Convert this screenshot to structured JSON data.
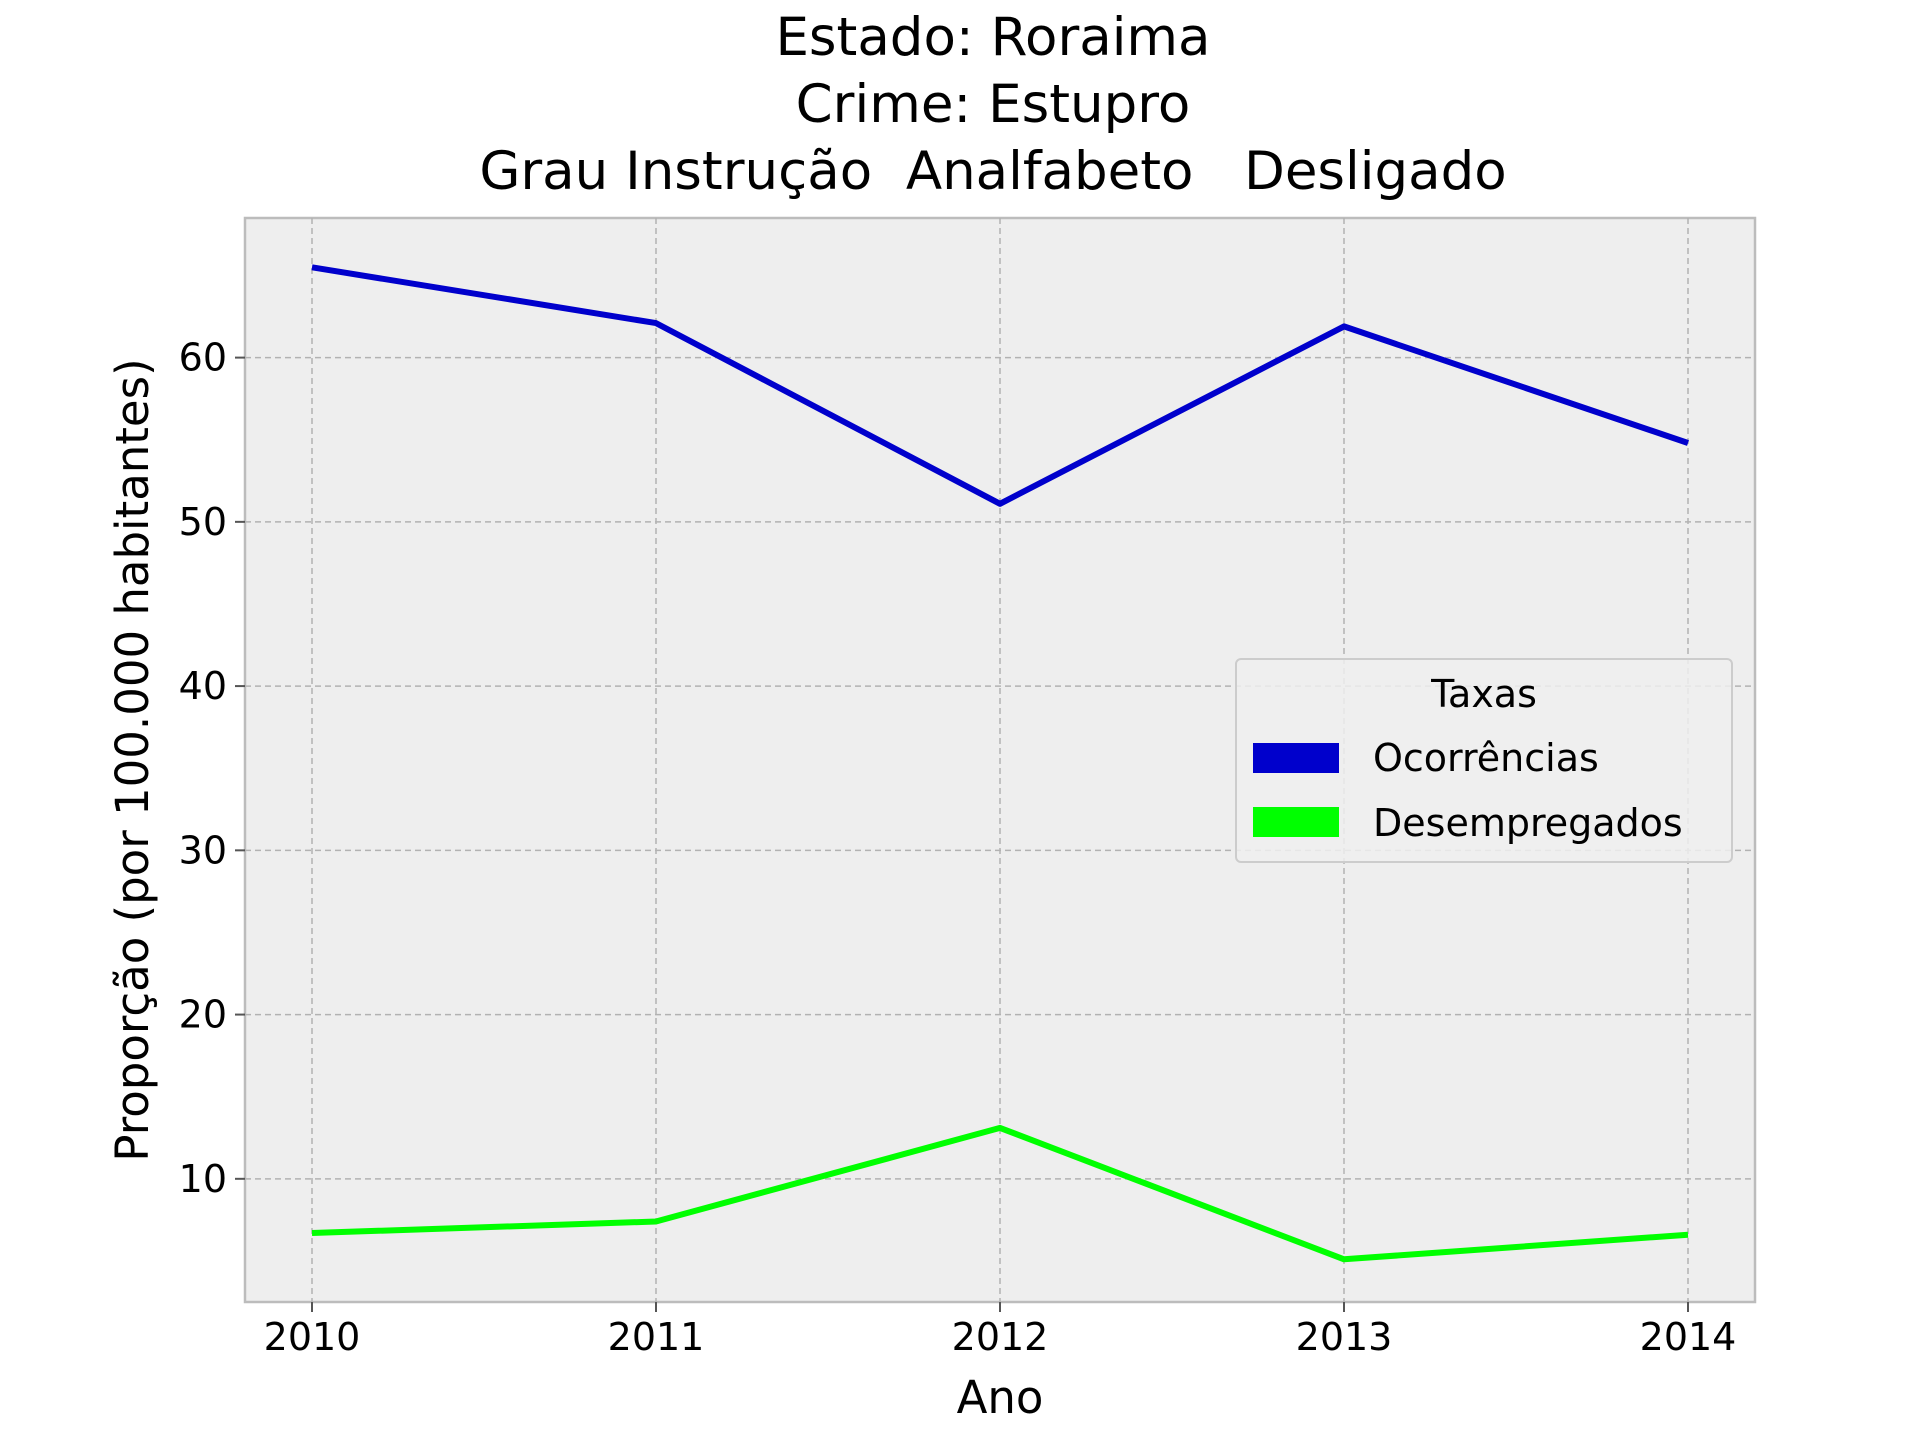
{
  "chart_data": {
    "type": "line",
    "title_lines": [
      "Estado: Roraima",
      "Crime: Estupro",
      "Grau Instrução  Analfabeto   Desligado"
    ],
    "xlabel": "Ano",
    "ylabel": "Proporção (por 100.000 habitantes)",
    "x": [
      "2010",
      "2011",
      "2012",
      "2013",
      "2014"
    ],
    "y_ticks": [
      "10",
      "20",
      "30",
      "40",
      "50",
      "60"
    ],
    "ylim": [
      2.5,
      68.5
    ],
    "grid": true,
    "legend": {
      "title": "Taxas",
      "placement": "center-right"
    },
    "series": [
      {
        "name": "Ocorrências",
        "color": "#0000cc",
        "values": [
          65.5,
          62.1,
          51.1,
          61.9,
          54.8
        ]
      },
      {
        "name": "Desempregados",
        "color": "#00ff00",
        "values": [
          6.7,
          7.4,
          13.1,
          5.1,
          6.6
        ]
      }
    ]
  }
}
